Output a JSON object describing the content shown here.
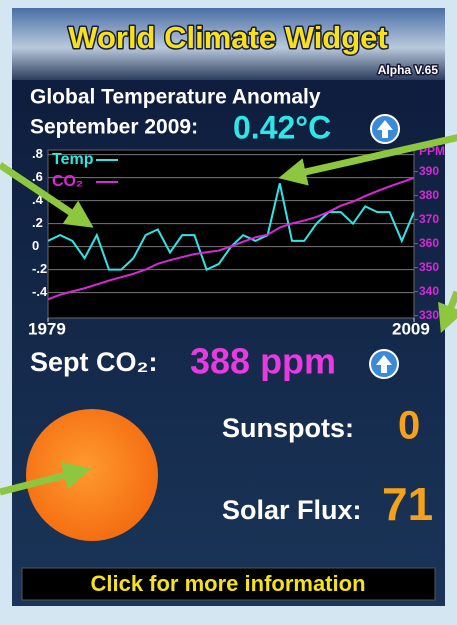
{
  "header": {
    "title": "World Climate Widget",
    "version": "Alpha V.65"
  },
  "headline": {
    "line1": "Global Temperature Anomaly",
    "line2": "September 2009:",
    "value": "0.42°C"
  },
  "chart_data": {
    "type": "line",
    "series": [
      {
        "name": "Temp",
        "color": "#2ee6e6",
        "x": [
          1979,
          1980,
          1981,
          1982,
          1983,
          1984,
          1985,
          1986,
          1987,
          1988,
          1989,
          1990,
          1991,
          1992,
          1993,
          1994,
          1995,
          1996,
          1997,
          1998,
          1999,
          2000,
          2001,
          2002,
          2003,
          2004,
          2005,
          2006,
          2007,
          2008,
          2009
        ],
        "values": [
          0.05,
          0.1,
          0.05,
          -0.1,
          0.1,
          -0.2,
          -0.2,
          -0.1,
          0.1,
          0.15,
          -0.05,
          0.1,
          0.1,
          -0.2,
          -0.15,
          0.0,
          0.1,
          0.05,
          0.1,
          0.55,
          0.05,
          0.05,
          0.2,
          0.3,
          0.3,
          0.2,
          0.35,
          0.3,
          0.3,
          0.05,
          0.3
        ]
      },
      {
        "name": "CO₂",
        "color": "#d828d8",
        "axis": "y2",
        "x": [
          1979,
          1980,
          1981,
          1982,
          1983,
          1984,
          1985,
          1986,
          1987,
          1988,
          1989,
          1990,
          1991,
          1992,
          1993,
          1994,
          1995,
          1996,
          1997,
          1998,
          1999,
          2000,
          2001,
          2002,
          2003,
          2004,
          2005,
          2006,
          2007,
          2008,
          2009
        ],
        "values": [
          336.8,
          338.7,
          340.1,
          341.4,
          343.0,
          344.6,
          346.0,
          347.4,
          349.2,
          351.6,
          353.1,
          354.4,
          355.6,
          356.4,
          357.1,
          358.8,
          360.8,
          362.6,
          363.7,
          366.7,
          368.4,
          369.6,
          371.1,
          373.2,
          375.8,
          377.5,
          379.8,
          381.9,
          383.8,
          385.6,
          387.4
        ]
      }
    ],
    "xlim": [
      1979,
      2009
    ],
    "xticks": [
      1979,
      2009
    ],
    "ylim": [
      -0.62,
      0.84
    ],
    "yticks": [
      {
        "value": 0.8,
        "label": ".8"
      },
      {
        "value": 0.6,
        "label": ".6"
      },
      {
        "value": 0.4,
        "label": ".4"
      },
      {
        "value": 0.2,
        "label": ".2"
      },
      0,
      {
        "value": -0.2,
        "label": "-.2"
      },
      {
        "value": -0.4,
        "label": "-.4"
      }
    ],
    "y2label": "PPM",
    "y2lim": [
      329,
      399
    ],
    "y2ticks": [
      330,
      340,
      350,
      360,
      370,
      380,
      390
    ],
    "grid": true,
    "legend": "upper left"
  },
  "co2": {
    "label": "Sept CO₂:",
    "value": "388 ppm"
  },
  "sunspots": {
    "label": "Sunspots:",
    "value": "0"
  },
  "solar_flux": {
    "label": "Solar Flux:",
    "value": "71"
  },
  "footer": {
    "link": "Click for more information"
  }
}
